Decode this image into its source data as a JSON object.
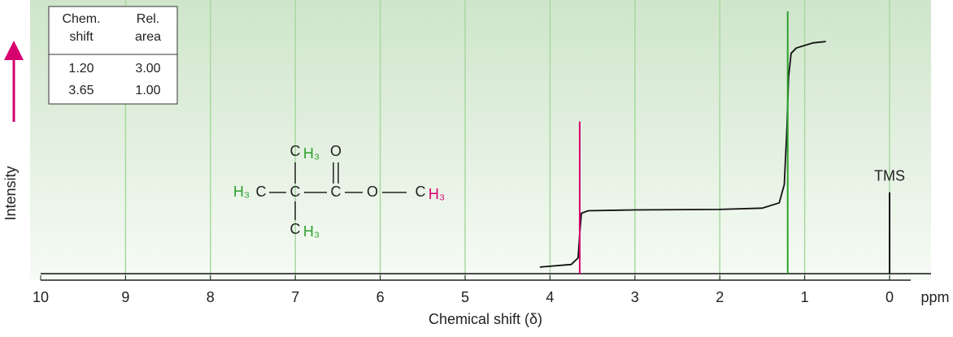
{
  "chart_data": {
    "type": "nmr",
    "x_label": "Chemical shift (δ)",
    "x_unit": "ppm",
    "y_label": "Intensity",
    "xlim": [
      10,
      0
    ],
    "xticks": [
      10,
      9,
      8,
      7,
      6,
      5,
      4,
      3,
      2,
      1,
      0
    ],
    "ylim": [
      0,
      100
    ],
    "grid": true,
    "peaks": [
      {
        "position": 3.65,
        "height": 58,
        "color": "#d6006f"
      },
      {
        "position": 1.2,
        "height": 100,
        "color": "#2ca02c"
      },
      {
        "position": 0,
        "height": 31,
        "color": "#111111",
        "label": "TMS"
      }
    ],
    "integral": {
      "color": "#111111",
      "x": [
        4.12,
        3.75,
        3.67,
        3.65,
        3.63,
        3.55,
        3.0,
        2.0,
        1.5,
        1.3,
        1.24,
        1.21,
        1.19,
        1.16,
        1.1,
        0.9,
        0.75
      ],
      "y": [
        2.5,
        3.5,
        6,
        15,
        23,
        24,
        24.3,
        24.5,
        25,
        27,
        34,
        55,
        75,
        84,
        86,
        88,
        88.5
      ]
    },
    "table": {
      "header": [
        [
          "Chem.",
          "shift"
        ],
        [
          "Rel.",
          "area"
        ]
      ],
      "rows": [
        [
          "1.20",
          "3.00"
        ],
        [
          "3.65",
          "1.00"
        ]
      ]
    },
    "molecule": [
      "H₃",
      "C",
      "C",
      "C",
      "O",
      "O",
      "C",
      "H₃",
      "C",
      "H₃",
      "C",
      "H₃"
    ]
  }
}
